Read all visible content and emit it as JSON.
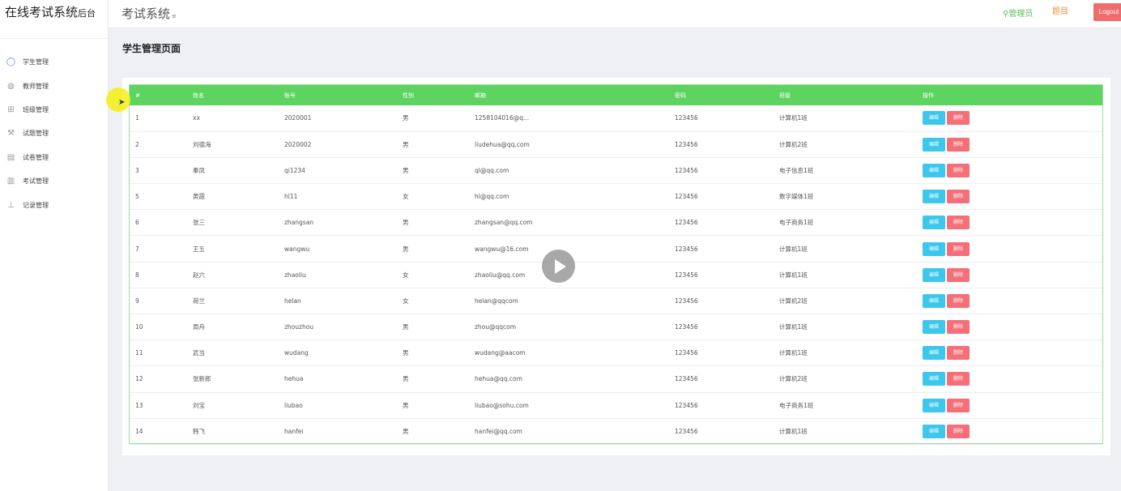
{
  "sidebar": {
    "brand_main": "在线考试系统",
    "brand_sub": "后台",
    "items": [
      {
        "label": "学生管理",
        "icon": "user-circle-icon",
        "glyph": "◯"
      },
      {
        "label": "教师管理",
        "icon": "teacher-icon",
        "glyph": "◍"
      },
      {
        "label": "班级管理",
        "icon": "grid-icon",
        "glyph": "⊞"
      },
      {
        "label": "试题管理",
        "icon": "tools-icon",
        "glyph": "⚒"
      },
      {
        "label": "试卷管理",
        "icon": "table-icon",
        "glyph": "▤"
      },
      {
        "label": "考试管理",
        "icon": "map-icon",
        "glyph": "▥"
      },
      {
        "label": "记录管理",
        "icon": "chart-icon",
        "glyph": "⊥"
      }
    ]
  },
  "header": {
    "title": "考试系统",
    "menu_toggle": "≡",
    "admin_label": "⚲管理员",
    "topic_label": "题目",
    "logout_label": "Logout"
  },
  "page": {
    "heading": "学生管理页面"
  },
  "table": {
    "columns": [
      "#",
      "姓名",
      "账号",
      "性别",
      "邮箱",
      "密码",
      "班级",
      "操作"
    ],
    "edit_label": "编辑",
    "delete_label": "删除",
    "rows": [
      [
        "1",
        "xx",
        "2020001",
        "男",
        "1258104016@q...",
        "123456",
        "计算机1班"
      ],
      [
        "2",
        "刘德海",
        "2020002",
        "男",
        "liudehua@qq.com",
        "123456",
        "计算机2班"
      ],
      [
        "3",
        "秦凤",
        "qi1234",
        "男",
        "ql@qq.com",
        "123456",
        "电子信息1班"
      ],
      [
        "5",
        "黄霞",
        "hl11",
        "女",
        "hl@qq.com",
        "123456",
        "数字媒体1班"
      ],
      [
        "6",
        "张三",
        "zhangsan",
        "男",
        "zhangsan@qq.com",
        "123456",
        "电子商务1班"
      ],
      [
        "7",
        "王五",
        "wangwu",
        "男",
        "wangwu@16.com",
        "123456",
        "计算机1班"
      ],
      [
        "8",
        "赵六",
        "zhaoliu",
        "女",
        "zhaoliu@qq.com",
        "123456",
        "计算机1班"
      ],
      [
        "9",
        "荷兰",
        "helan",
        "女",
        "helan@qqcom",
        "123456",
        "计算机2班"
      ],
      [
        "10",
        "周舟",
        "zhouzhou",
        "男",
        "zhou@qqcom",
        "123456",
        "计算机1班"
      ],
      [
        "11",
        "武当",
        "wudang",
        "男",
        "wudang@aacom",
        "123456",
        "计算机1班"
      ],
      [
        "12",
        "张新郎",
        "hehua",
        "男",
        "hehua@qq.com",
        "123456",
        "计算机2班"
      ],
      [
        "13",
        "刘宝",
        "liubao",
        "男",
        "liubao@sohu.com",
        "123456",
        "电子商务1班"
      ],
      [
        "14",
        "韩飞",
        "hanfei",
        "男",
        "hanfei@qq.com",
        "123456",
        "计算机1班"
      ]
    ]
  },
  "colors": {
    "table_header": "#5cd45f",
    "edit_button": "#3cc7eb",
    "delete_button": "#f56f78",
    "logout_button": "#f06c6c",
    "admin_link": "#5ac05e",
    "topic_link": "#e8922e"
  }
}
